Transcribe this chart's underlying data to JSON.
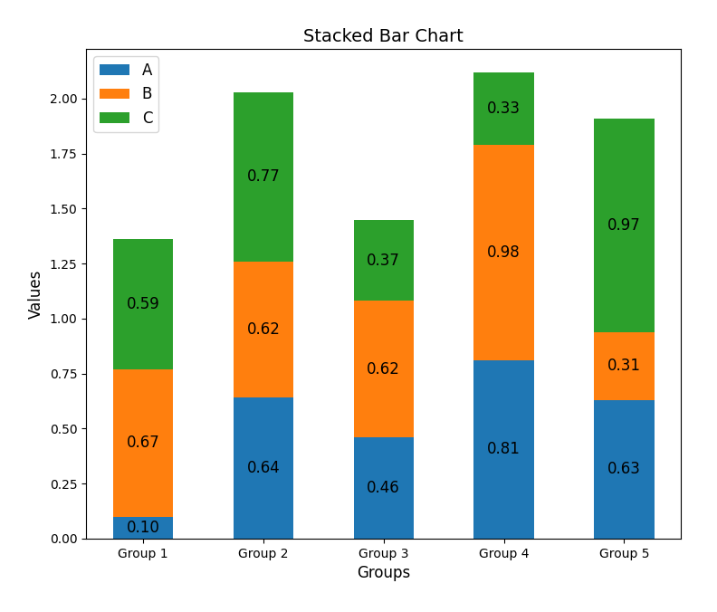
{
  "categories": [
    "Group 1",
    "Group 2",
    "Group 3",
    "Group 4",
    "Group 5"
  ],
  "series": {
    "A": [
      0.1,
      0.64,
      0.46,
      0.81,
      0.63
    ],
    "B": [
      0.67,
      0.62,
      0.62,
      0.98,
      0.31
    ],
    "C": [
      0.59,
      0.77,
      0.37,
      0.33,
      0.97
    ]
  },
  "colors": {
    "A": "#1f77b4",
    "B": "#ff7f0e",
    "C": "#2ca02c"
  },
  "title": "Stacked Bar Chart",
  "xlabel": "Groups",
  "ylabel": "Values",
  "legend_labels": [
    "A",
    "B",
    "C"
  ],
  "annotation_fontsize": 12,
  "title_fontsize": 14,
  "bar_width": 0.5
}
